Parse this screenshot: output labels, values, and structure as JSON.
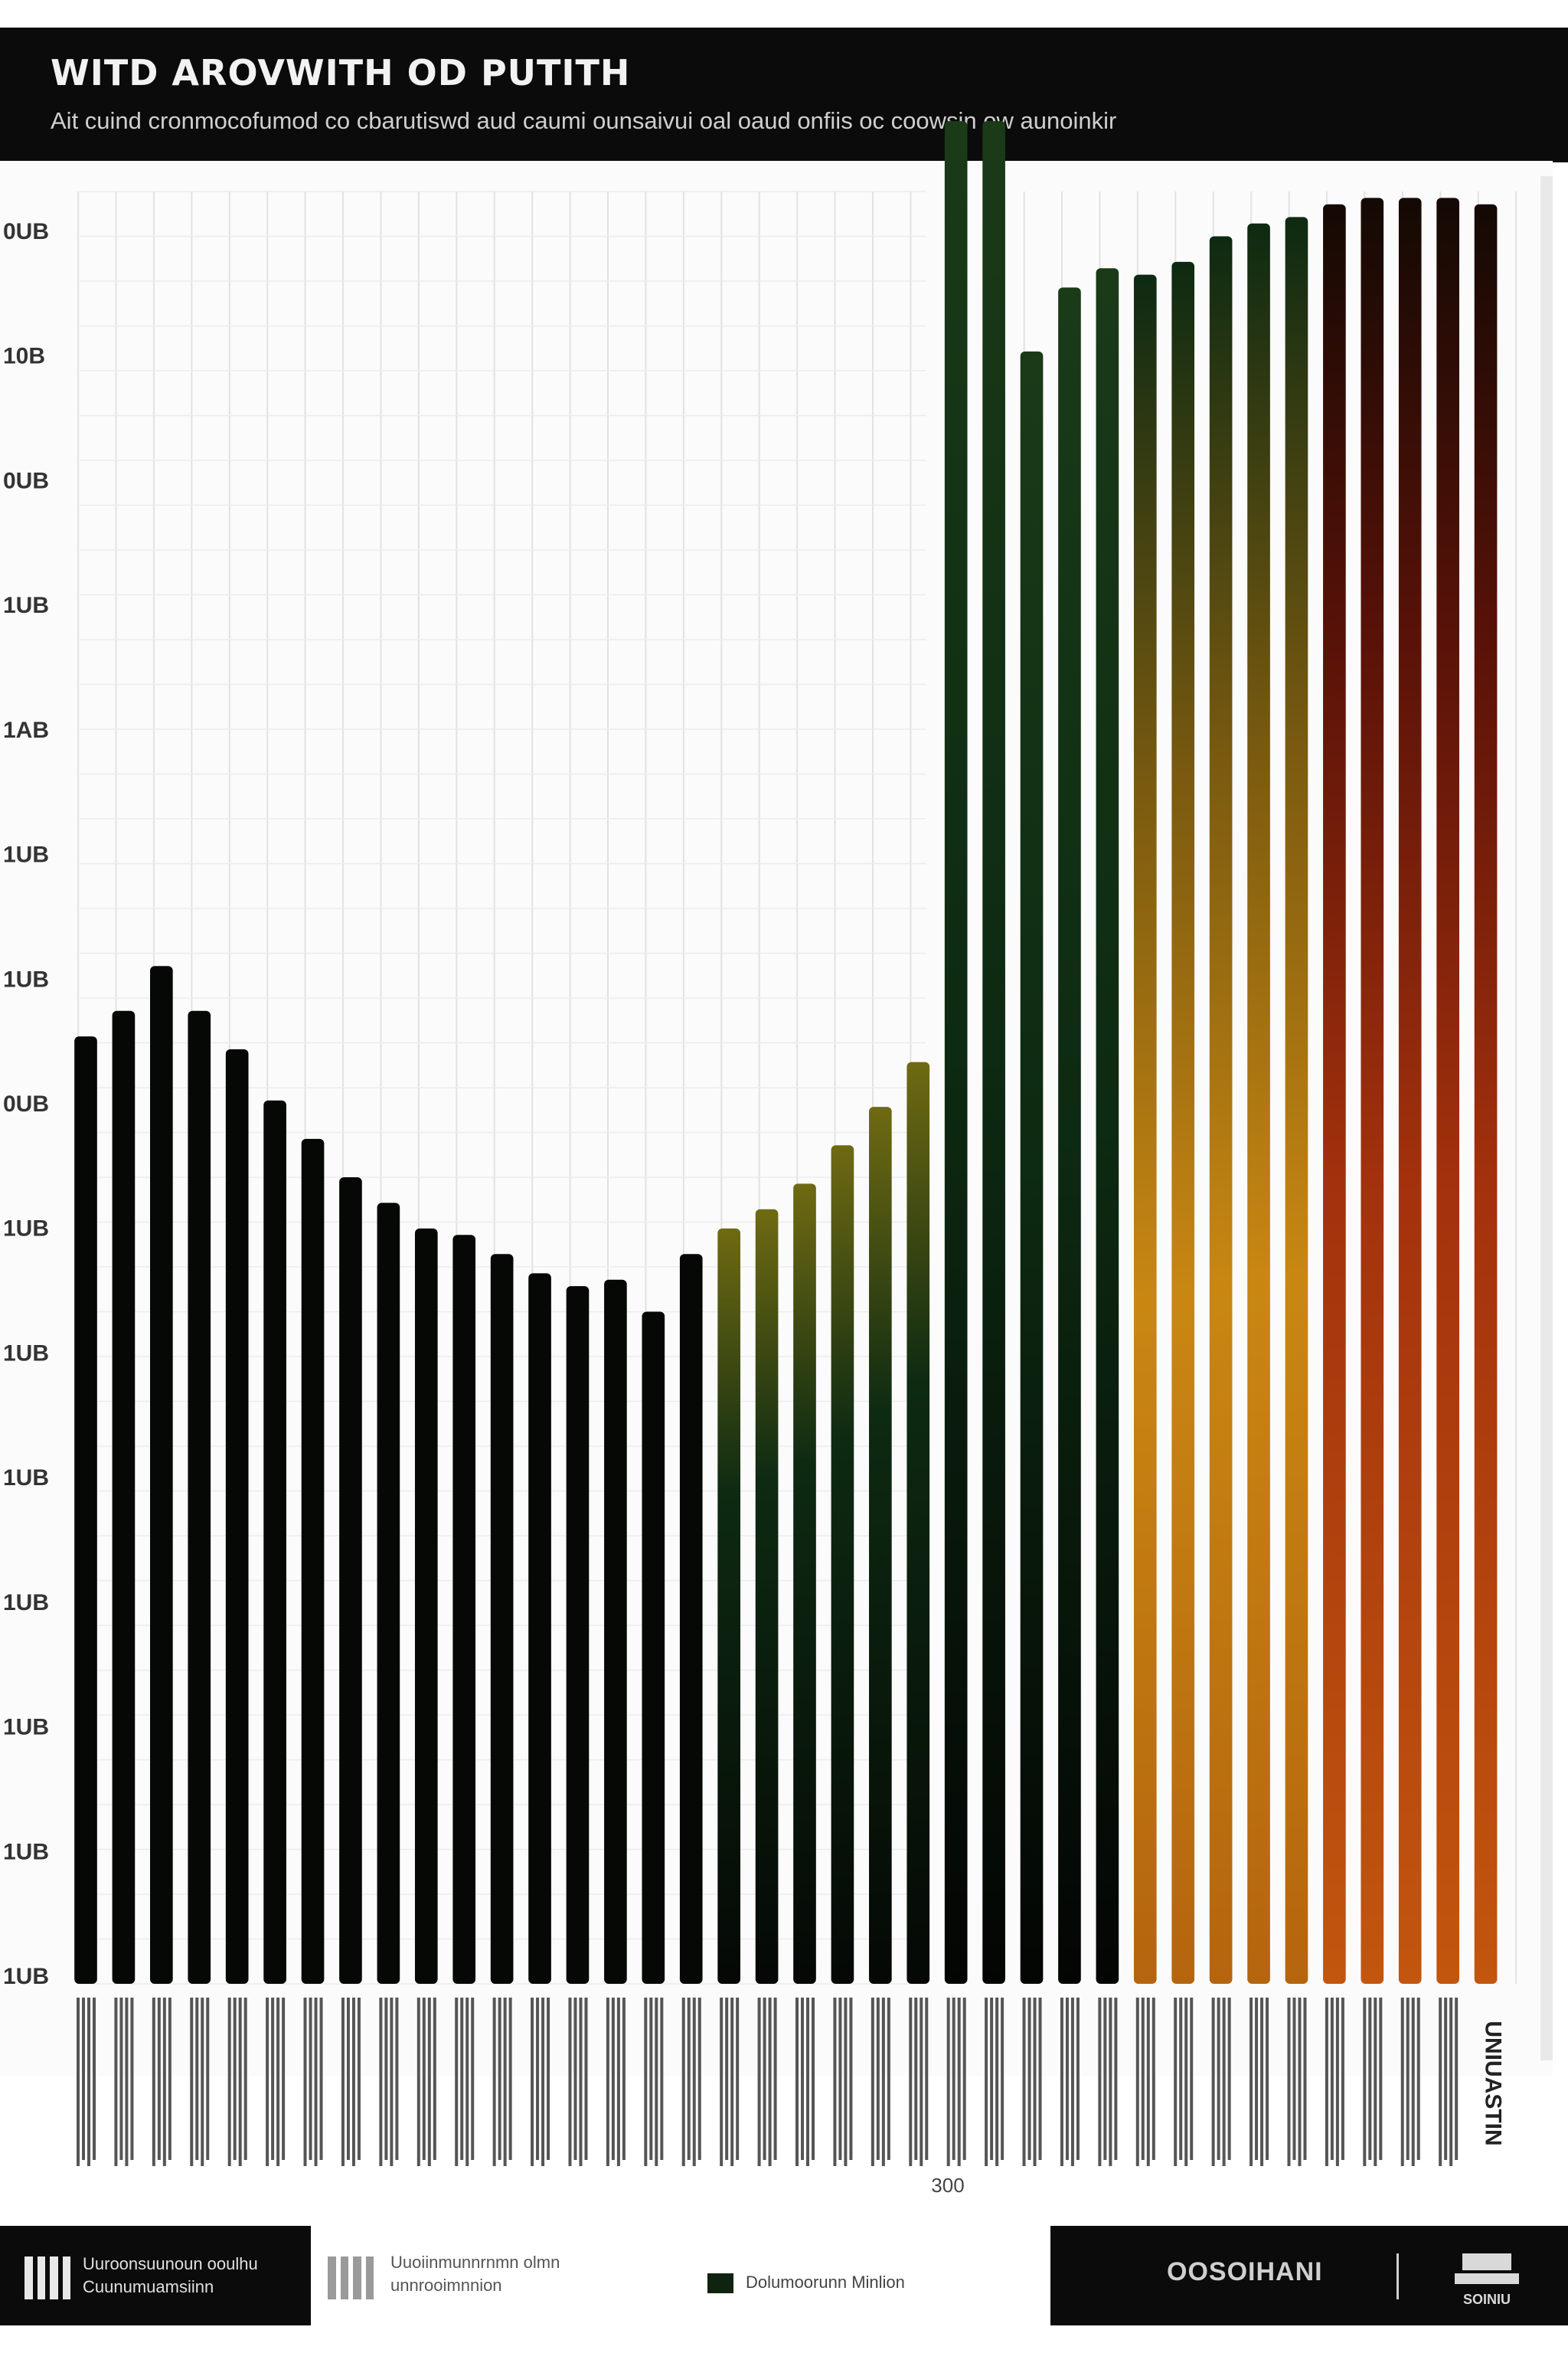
{
  "header": {
    "title": "WITD AROVWITH OD PUTITH",
    "subtitle": "Ait cuind cronmocofumod co cbarutiswd aud caumi ounsaivui oal oaud onfiis oc coowsin ow aunoinkir"
  },
  "colors": {
    "header_bg": "#0b0b0b",
    "bar_dark": "#050805",
    "bar_green": "#0d2a12",
    "bar_olive": "#6f6a12",
    "bar_amber": "#c98712",
    "bar_rust": "#a3310d",
    "bar_deep_red": "#5a1208"
  },
  "chart_data": {
    "type": "bar",
    "title": "WITD AROVWITH OD PUTITH",
    "subtitle": "Ait cuind cronmocofumod co cbarutiswd aud caumi ounsaivui oal oaud onfiis oc coowsin ow aunoinkir",
    "y_tick_labels": [
      "0UB",
      "10B",
      "0UB",
      "1UB",
      "1AB",
      "1UB",
      "1UB",
      "0UB",
      "1UB",
      "1UB",
      "1UB",
      "1UB",
      "1UB",
      "1UB",
      "1UB"
    ],
    "ylim": [
      0,
      14
    ],
    "grid": true,
    "x_annotation": "300",
    "last_category_label": "UNIUASTIN",
    "values": [
      7.4,
      7.6,
      7.95,
      7.6,
      7.3,
      6.9,
      6.6,
      6.3,
      6.1,
      5.9,
      5.85,
      5.7,
      5.55,
      5.45,
      5.5,
      5.25,
      5.7,
      5.9,
      6.05,
      6.25,
      6.55,
      6.85,
      7.2,
      14.55,
      14.55,
      12.75,
      13.25,
      13.4,
      13.35,
      13.45,
      13.65,
      13.75,
      13.8,
      13.9,
      13.95,
      13.95,
      13.95,
      13.9
    ]
  },
  "footer": {
    "left_text_1": "Uuroonsuunoun ooulhu",
    "left_text_2": "Cuunumuamsiinn",
    "mid_text_1": "Uuoiinmunnrnmn olmn",
    "mid_text_2": "unnrooimnnion",
    "legend_label": "Dolumoorunn Minlion",
    "brand_name": "OOSOIHANI",
    "logo_label": "SOINIU"
  }
}
